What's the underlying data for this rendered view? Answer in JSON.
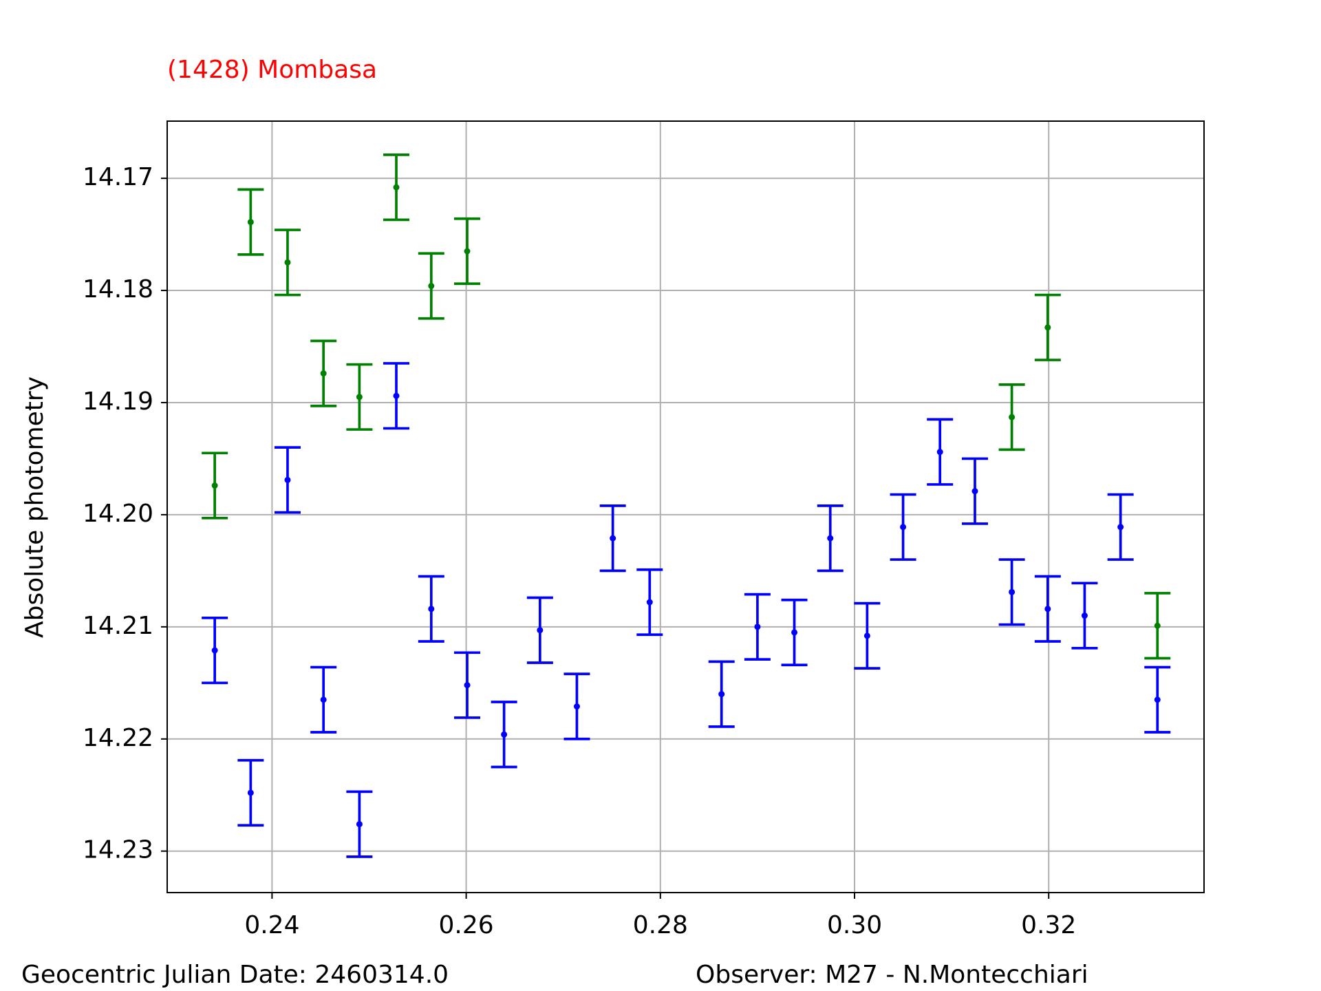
{
  "chart_data": {
    "type": "errorbar",
    "title": "(1428) Mombasa",
    "y_label": "Absolute photometry",
    "annotations": [
      "Geocentric Julian Date: 2460314.0",
      "Observer: M27 - N.Montecchiari"
    ],
    "xlim": [
      0.2292,
      0.336
    ],
    "ylim": [
      14.1649,
      14.2337
    ],
    "y_inverted": true,
    "grid": true,
    "xticks": [
      0.24,
      0.26,
      0.28,
      {
        "value": 0.3,
        "label": "0.30"
      },
      0.32
    ],
    "yticks": [
      14.17,
      14.18,
      14.19,
      {
        "value": 14.2,
        "label": "14.20"
      },
      14.21,
      14.22,
      14.23
    ],
    "series": [
      {
        "color": "#008000",
        "x": [
          0.2341,
          0.2378,
          0.2416,
          0.2453,
          0.249,
          0.2528,
          0.2564,
          0.2601,
          0.3162,
          0.3199,
          0.3312
        ],
        "values": [
          14.1974,
          14.1739,
          14.1775,
          14.1874,
          14.1895,
          14.1708,
          14.1796,
          14.1765,
          14.1913,
          14.1833,
          14.2099
        ],
        "errors": [
          0.0029,
          0.0029,
          0.0029,
          0.0029,
          0.0029,
          0.0029,
          0.0029,
          0.0029,
          0.0029,
          0.0029,
          0.0029
        ]
      },
      {
        "color": "#0000ff",
        "x": [
          0.2341,
          0.2378,
          0.2416,
          0.2453,
          0.249,
          0.2528,
          0.2564,
          0.2601,
          0.2639,
          0.2676,
          0.2714,
          0.2751,
          0.2789,
          0.2863,
          0.29,
          0.2938,
          0.2975,
          0.3013,
          0.305,
          0.3088,
          0.3124,
          0.3162,
          0.3199,
          0.3237,
          0.3274,
          0.3312
        ],
        "values": [
          14.2121,
          14.2248,
          14.1969,
          14.2165,
          14.2276,
          14.1894,
          14.2084,
          14.2152,
          14.2196,
          14.2103,
          14.2171,
          14.2021,
          14.2078,
          14.216,
          14.21,
          14.2105,
          14.2021,
          14.2108,
          14.2011,
          14.1944,
          14.1979,
          14.2069,
          14.2084,
          14.209,
          14.2011,
          14.2165
        ],
        "errors": [
          0.0029,
          0.0029,
          0.0029,
          0.0029,
          0.0029,
          0.0029,
          0.0029,
          0.0029,
          0.0029,
          0.0029,
          0.0029,
          0.0029,
          0.0029,
          0.0029,
          0.0029,
          0.0029,
          0.0029,
          0.0029,
          0.0029,
          0.0029,
          0.0029,
          0.0029,
          0.0029,
          0.0029,
          0.0029,
          0.0029
        ]
      }
    ]
  }
}
